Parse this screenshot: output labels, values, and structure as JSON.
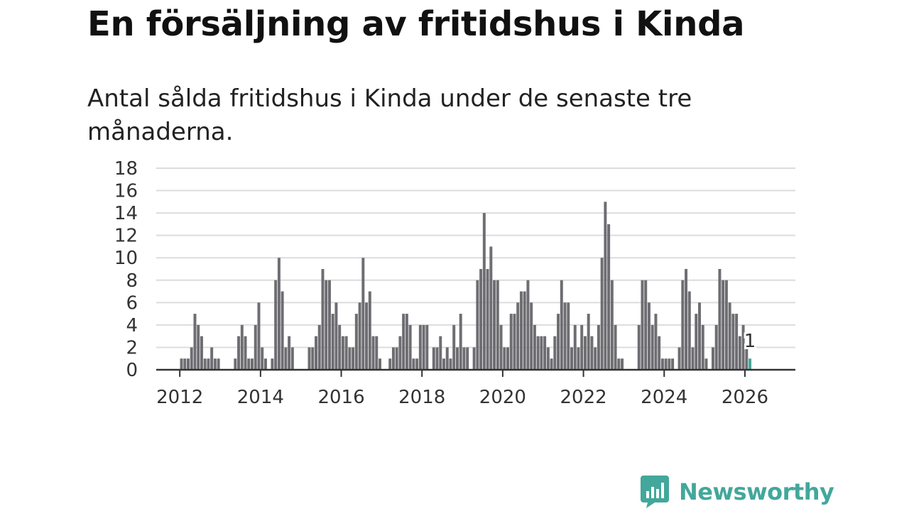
{
  "title": "En försäljning av fritidshus i Kinda",
  "subtitle": "Antal sålda fritidshus i Kinda under de senaste tre månaderna.",
  "brand": {
    "name": "Newsworthy",
    "color": "#43a79b",
    "icon": "newsworthy-chart-bubble-icon"
  },
  "chart_data": {
    "type": "bar",
    "title": "En försäljning av fritidshus i Kinda",
    "subtitle": "Antal sålda fritidshus i Kinda under de senaste tre månaderna.",
    "xlabel": "",
    "ylabel": "",
    "ylim": [
      0,
      18
    ],
    "y_ticks": [
      0,
      2,
      4,
      6,
      8,
      10,
      12,
      14,
      16,
      18
    ],
    "x_ticks": [
      "2012",
      "2014",
      "2016",
      "2018",
      "2020",
      "2022",
      "2024",
      "2026"
    ],
    "x_range": [
      "2011-06",
      "2027-04"
    ],
    "grid": true,
    "bar_color": "#6e6d72",
    "highlight_color": "#43a79b",
    "highlight_label": "1",
    "dates": [
      "2012-01",
      "2012-02",
      "2012-03",
      "2012-04",
      "2012-05",
      "2012-06",
      "2012-07",
      "2012-08",
      "2012-09",
      "2012-10",
      "2012-11",
      "2012-12",
      "2013-01",
      "2013-02",
      "2013-03",
      "2013-04",
      "2013-05",
      "2013-06",
      "2013-07",
      "2013-08",
      "2013-09",
      "2013-10",
      "2013-11",
      "2013-12",
      "2014-01",
      "2014-02",
      "2014-03",
      "2014-04",
      "2014-05",
      "2014-06",
      "2014-07",
      "2014-08",
      "2014-09",
      "2014-10",
      "2014-11",
      "2014-12",
      "2015-01",
      "2015-02",
      "2015-03",
      "2015-04",
      "2015-05",
      "2015-06",
      "2015-07",
      "2015-08",
      "2015-09",
      "2015-10",
      "2015-11",
      "2015-12",
      "2016-01",
      "2016-02",
      "2016-03",
      "2016-04",
      "2016-05",
      "2016-06",
      "2016-07",
      "2016-08",
      "2016-09",
      "2016-10",
      "2016-11",
      "2016-12",
      "2017-01",
      "2017-02",
      "2017-03",
      "2017-04",
      "2017-05",
      "2017-06",
      "2017-07",
      "2017-08",
      "2017-09",
      "2017-10",
      "2017-11",
      "2017-12",
      "2018-01",
      "2018-02",
      "2018-03",
      "2018-04",
      "2018-05",
      "2018-06",
      "2018-07",
      "2018-08",
      "2018-09",
      "2018-10",
      "2018-11",
      "2018-12",
      "2019-01",
      "2019-02",
      "2019-03",
      "2019-04",
      "2019-05",
      "2019-06",
      "2019-07",
      "2019-08",
      "2019-09",
      "2019-10",
      "2019-11",
      "2019-12",
      "2020-01",
      "2020-02",
      "2020-03",
      "2020-04",
      "2020-05",
      "2020-06",
      "2020-07",
      "2020-08",
      "2020-09",
      "2020-10",
      "2020-11",
      "2020-12",
      "2021-01",
      "2021-02",
      "2021-03",
      "2021-04",
      "2021-05",
      "2021-06",
      "2021-07",
      "2021-08",
      "2021-09",
      "2021-10",
      "2021-11",
      "2021-12",
      "2022-01",
      "2022-02",
      "2022-03",
      "2022-04",
      "2022-05",
      "2022-06",
      "2022-07",
      "2022-08",
      "2022-09",
      "2022-10",
      "2022-11",
      "2022-12",
      "2023-01",
      "2023-02",
      "2023-03",
      "2023-04",
      "2023-05",
      "2023-06",
      "2023-07",
      "2023-08",
      "2023-09",
      "2023-10",
      "2023-11",
      "2023-12",
      "2024-01",
      "2024-02",
      "2024-03",
      "2024-04",
      "2024-05",
      "2024-06",
      "2024-07",
      "2024-08",
      "2024-09",
      "2024-10",
      "2024-11",
      "2024-12",
      "2025-01",
      "2025-02",
      "2025-03",
      "2025-04",
      "2025-05",
      "2025-06",
      "2025-07",
      "2025-08",
      "2025-09",
      "2025-10",
      "2025-11",
      "2025-12",
      "2026-01",
      "2026-02"
    ],
    "values": [
      1,
      1,
      1,
      2,
      5,
      4,
      3,
      1,
      1,
      2,
      1,
      1,
      0,
      0,
      0,
      0,
      1,
      3,
      4,
      3,
      1,
      1,
      4,
      6,
      2,
      1,
      0,
      1,
      8,
      10,
      7,
      2,
      3,
      2,
      0,
      0,
      0,
      0,
      2,
      2,
      3,
      4,
      9,
      8,
      8,
      5,
      6,
      4,
      3,
      3,
      2,
      2,
      5,
      6,
      10,
      6,
      7,
      3,
      3,
      1,
      0,
      0,
      1,
      2,
      2,
      3,
      5,
      5,
      4,
      1,
      1,
      4,
      4,
      4,
      0,
      2,
      2,
      3,
      1,
      2,
      1,
      4,
      2,
      5,
      2,
      2,
      0,
      2,
      8,
      9,
      14,
      9,
      11,
      8,
      8,
      4,
      2,
      2,
      5,
      5,
      6,
      7,
      7,
      8,
      6,
      4,
      3,
      3,
      3,
      2,
      1,
      3,
      5,
      8,
      6,
      6,
      2,
      4,
      2,
      4,
      3,
      5,
      3,
      2,
      4,
      10,
      15,
      13,
      8,
      4,
      1,
      1,
      0,
      0,
      0,
      0,
      4,
      8,
      8,
      6,
      4,
      5,
      3,
      1,
      1,
      1,
      1,
      0,
      2,
      8,
      9,
      7,
      2,
      5,
      6,
      4,
      1,
      0,
      2,
      4,
      9,
      8,
      8,
      6,
      5,
      5,
      3,
      4,
      2,
      1
    ]
  }
}
